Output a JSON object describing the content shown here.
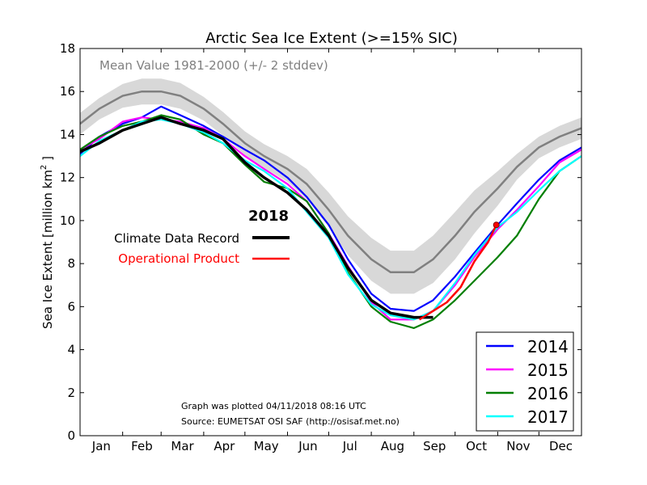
{
  "chart_data": {
    "type": "line",
    "title": "Arctic Sea Ice Extent (>=15% SIC)",
    "ylabel": "Sea Ice Extent [million km",
    "ylabel_sup": "2",
    "ylabel_end": " ]",
    "ylim": [
      0,
      18
    ],
    "y_ticks": [
      0,
      2,
      4,
      6,
      8,
      10,
      12,
      14,
      16,
      18
    ],
    "xlim": [
      1,
      366
    ],
    "months": [
      "Jan",
      "Feb",
      "Mar",
      "Apr",
      "May",
      "Jun",
      "Jul",
      "Aug",
      "Sep",
      "Oct",
      "Nov",
      "Dec"
    ],
    "month_day_starts": [
      1,
      32,
      60,
      91,
      121,
      152,
      182,
      213,
      244,
      274,
      305,
      335
    ],
    "grid": false,
    "mean_label": "Mean Value 1981-2000 (+/- 2 stddev)",
    "mean": {
      "color": "#808080",
      "band_color": "#d8d8d8",
      "x": [
        1,
        15,
        32,
        46,
        60,
        74,
        91,
        105,
        121,
        135,
        152,
        166,
        182,
        196,
        213,
        227,
        244,
        258,
        274,
        288,
        305,
        319,
        335,
        350,
        366
      ],
      "values": [
        14.5,
        15.2,
        15.8,
        16.0,
        16.0,
        15.8,
        15.2,
        14.5,
        13.6,
        13.0,
        12.4,
        11.7,
        10.5,
        9.3,
        8.2,
        7.6,
        7.6,
        8.2,
        9.3,
        10.4,
        11.5,
        12.5,
        13.4,
        13.9,
        14.3
      ],
      "std2": [
        0.5,
        0.5,
        0.55,
        0.6,
        0.6,
        0.6,
        0.55,
        0.55,
        0.55,
        0.55,
        0.6,
        0.7,
        0.8,
        0.9,
        1.0,
        1.0,
        1.0,
        1.1,
        1.1,
        1.0,
        0.8,
        0.6,
        0.5,
        0.5,
        0.5
      ]
    },
    "series": [
      {
        "name": "2014",
        "color": "#0000ff",
        "x": [
          1,
          15,
          32,
          46,
          60,
          74,
          91,
          105,
          121,
          135,
          152,
          166,
          182,
          196,
          213,
          227,
          244,
          258,
          274,
          288,
          305,
          319,
          335,
          350,
          366
        ],
        "values": [
          13.1,
          13.9,
          14.5,
          14.8,
          15.3,
          14.9,
          14.4,
          13.9,
          13.3,
          12.8,
          12.0,
          11.1,
          9.8,
          8.2,
          6.6,
          5.9,
          5.8,
          6.3,
          7.4,
          8.5,
          9.8,
          10.8,
          11.9,
          12.8,
          13.4
        ]
      },
      {
        "name": "2015",
        "color": "#ff00ff",
        "x": [
          1,
          15,
          32,
          46,
          60,
          74,
          91,
          105,
          121,
          135,
          152,
          166,
          182,
          196,
          213,
          227,
          244,
          258,
          274,
          288,
          305,
          319,
          335,
          350,
          366
        ],
        "values": [
          13.3,
          13.8,
          14.6,
          14.8,
          14.7,
          14.6,
          14.3,
          13.8,
          13.0,
          12.4,
          11.7,
          10.9,
          9.4,
          7.9,
          6.2,
          5.4,
          5.4,
          5.8,
          7.0,
          8.3,
          9.6,
          10.5,
          11.6,
          12.7,
          13.3
        ]
      },
      {
        "name": "2016",
        "color": "#007f00",
        "x": [
          1,
          15,
          32,
          46,
          60,
          74,
          91,
          105,
          121,
          135,
          152,
          166,
          182,
          196,
          213,
          227,
          244,
          258,
          274,
          288,
          305,
          319,
          335,
          350,
          366
        ],
        "values": [
          13.3,
          13.9,
          14.4,
          14.6,
          14.9,
          14.7,
          14.0,
          13.6,
          12.6,
          11.8,
          11.5,
          10.9,
          9.4,
          7.6,
          6.0,
          5.3,
          5.0,
          5.4,
          6.3,
          7.2,
          8.3,
          9.3,
          11.0,
          12.3,
          13.0
        ]
      },
      {
        "name": "2017",
        "color": "#00ffff",
        "x": [
          1,
          15,
          32,
          46,
          60,
          74,
          91,
          105,
          121,
          135,
          152,
          166,
          182,
          196,
          213,
          227,
          244,
          258,
          274,
          288,
          305,
          319,
          335,
          350,
          366
        ],
        "values": [
          13.0,
          13.7,
          14.2,
          14.6,
          14.7,
          14.5,
          14.1,
          13.6,
          12.8,
          12.3,
          11.5,
          10.4,
          9.2,
          7.5,
          6.1,
          5.6,
          5.4,
          5.8,
          7.1,
          8.4,
          9.7,
          10.4,
          11.4,
          12.3,
          13.0
        ]
      }
    ],
    "cdr_2018": {
      "name": "Climate Data Record",
      "color": "#000000",
      "x": [
        1,
        15,
        32,
        46,
        60,
        74,
        91,
        105,
        121,
        135,
        152,
        166,
        182,
        196,
        213,
        227,
        244,
        258
      ],
      "values": [
        13.2,
        13.6,
        14.2,
        14.5,
        14.8,
        14.5,
        14.2,
        13.8,
        12.7,
        12.0,
        11.3,
        10.5,
        9.3,
        7.8,
        6.3,
        5.7,
        5.5,
        5.5
      ]
    },
    "op_2018": {
      "name": "Operational Product",
      "color": "#ff0000",
      "x": [
        248,
        258,
        268,
        278,
        288,
        298,
        304
      ],
      "values": [
        5.4,
        5.8,
        6.2,
        6.9,
        8.1,
        9.0,
        9.8
      ]
    },
    "legend_2018_title": "2018",
    "legend_years_position": "bottom-right",
    "annotations": {
      "plotted": "Graph was plotted 04/11/2018 08:16 UTC",
      "source": "Source: EUMETSAT OSI SAF (http://osisaf.met.no)"
    }
  }
}
